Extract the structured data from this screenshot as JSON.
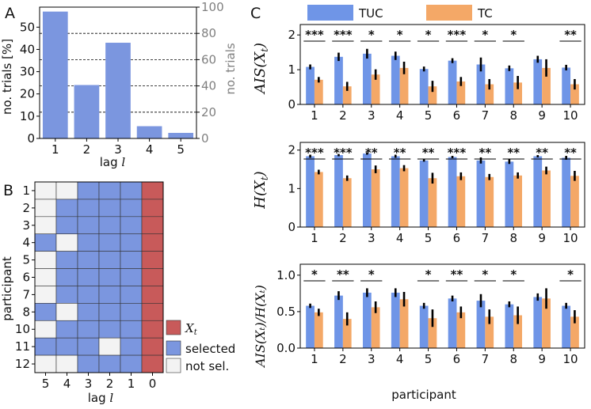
{
  "colors": {
    "bar": "#7b96df",
    "tuc": "#6f95e7",
    "tc": "#f4a867",
    "target": "#c85a5a",
    "selected": "#7b96df",
    "not_selected": "#f3f3f3",
    "right_axis": "#808080"
  },
  "chart_data": [
    {
      "panel": "A",
      "type": "bar",
      "categories": [
        "1",
        "2",
        "3",
        "4",
        "5"
      ],
      "values": [
        57,
        24,
        43,
        5.5,
        2.5
      ],
      "xlabel_main": "lag ",
      "xlabel_var": "l",
      "ylabel": "no. trials [%]",
      "ylim": [
        0,
        59
      ],
      "yticks": [
        "0",
        "10",
        "20",
        "30",
        "40",
        "50"
      ],
      "ytick_values": [
        0,
        10,
        20,
        30,
        40,
        50
      ],
      "secondary_ylabel": "no. trials",
      "secondary_ylim": [
        0,
        100
      ],
      "secondary_yticks": [
        "0",
        "20",
        "40",
        "60",
        "80",
        "100"
      ],
      "secondary_ytick_values": [
        0,
        20,
        40,
        60,
        80,
        100
      ],
      "grid": "dashed horizontal at secondary ticks"
    },
    {
      "panel": "B",
      "type": "heatmap",
      "ylabel": "participant",
      "rows": [
        "1",
        "2",
        "3",
        "4",
        "5",
        "6",
        "7",
        "8",
        "10",
        "11",
        "12"
      ],
      "columns": [
        "5",
        "4",
        "3",
        "2",
        "1",
        "0"
      ],
      "xlabel_main": "lag ",
      "xlabel_var": "l",
      "cells": [
        [
          0,
          0,
          1,
          1,
          1,
          2
        ],
        [
          0,
          1,
          1,
          1,
          1,
          2
        ],
        [
          0,
          1,
          1,
          1,
          1,
          2
        ],
        [
          1,
          0,
          1,
          1,
          1,
          2
        ],
        [
          0,
          1,
          1,
          1,
          1,
          2
        ],
        [
          0,
          1,
          1,
          1,
          1,
          2
        ],
        [
          0,
          1,
          1,
          1,
          1,
          2
        ],
        [
          1,
          0,
          1,
          1,
          1,
          2
        ],
        [
          0,
          1,
          1,
          1,
          1,
          2
        ],
        [
          1,
          1,
          1,
          0,
          1,
          2
        ],
        [
          0,
          0,
          1,
          1,
          1,
          2
        ]
      ],
      "legend": [
        "X_t",
        "selected",
        "not sel."
      ],
      "legend_target_main": "X",
      "legend_target_sub": "t"
    },
    {
      "panel": "C",
      "type": "bar",
      "categories": [
        "1",
        "2",
        "3",
        "4",
        "5",
        "6",
        "7",
        "8",
        "9",
        "10"
      ],
      "xlabel": "participant",
      "legend": [
        "TUC",
        "TC"
      ],
      "subplots": [
        {
          "ylabel": "AIS(X_t)",
          "ylabel_main": "AIS(X",
          "ylabel_sub": "t",
          "ylabel_end": ")",
          "ylim": [
            0,
            2.3
          ],
          "yticks": [
            "0",
            "1",
            "2"
          ],
          "ytick_values": [
            0,
            1,
            2
          ],
          "series": [
            {
              "name": "TUC",
              "values": [
                1.08,
                1.37,
                1.46,
                1.4,
                1.02,
                1.26,
                1.15,
                1.04,
                1.3,
                1.06
              ],
              "errors": [
                0.07,
                0.12,
                0.14,
                0.12,
                0.07,
                0.07,
                0.2,
                0.08,
                0.1,
                0.08
              ]
            },
            {
              "name": "TC",
              "values": [
                0.71,
                0.52,
                0.86,
                1.05,
                0.52,
                0.66,
                0.58,
                0.63,
                1.05,
                0.58
              ],
              "errors": [
                0.08,
                0.13,
                0.15,
                0.18,
                0.16,
                0.13,
                0.15,
                0.19,
                0.25,
                0.15
              ]
            }
          ],
          "significance": [
            "***",
            "***",
            "*",
            "*",
            "*",
            "***",
            "*",
            "*",
            "",
            "**"
          ]
        },
        {
          "ylabel": "H(X_t)",
          "ylabel_main": "H(X",
          "ylabel_sub": "t",
          "ylabel_end": ")",
          "ylim": [
            0,
            2.2
          ],
          "yticks": [
            "0",
            "1",
            "2"
          ],
          "ytick_values": [
            0,
            1,
            2
          ],
          "series": [
            {
              "name": "TUC",
              "values": [
                1.84,
                1.87,
                1.91,
                1.84,
                1.73,
                1.82,
                1.73,
                1.7,
                1.84,
                1.8
              ],
              "errors": [
                0.04,
                0.03,
                0.03,
                0.04,
                0.03,
                0.03,
                0.08,
                0.06,
                0.03,
                0.05
              ]
            },
            {
              "name": "TC",
              "values": [
                1.43,
                1.27,
                1.5,
                1.53,
                1.27,
                1.32,
                1.3,
                1.34,
                1.47,
                1.33
              ],
              "errors": [
                0.06,
                0.07,
                0.1,
                0.08,
                0.14,
                0.1,
                0.08,
                0.08,
                0.1,
                0.13
              ]
            }
          ],
          "significance": [
            "***",
            "***",
            "**",
            "**",
            "**",
            "***",
            "**",
            "**",
            "**",
            "**"
          ]
        },
        {
          "ylabel": "AIS(X_t)/H(X_t)",
          "ylabel_text": "AIS(Xₜ)/H(Xₜ)",
          "ylim": [
            0,
            1.15
          ],
          "yticks": [
            "0.0",
            "0.5",
            "1.0"
          ],
          "ytick_values": [
            0,
            0.5,
            1.0
          ],
          "series": [
            {
              "name": "TUC",
              "values": [
                0.58,
                0.72,
                0.76,
                0.76,
                0.58,
                0.68,
                0.65,
                0.6,
                0.7,
                0.58
              ],
              "errors": [
                0.03,
                0.06,
                0.06,
                0.06,
                0.04,
                0.04,
                0.09,
                0.04,
                0.05,
                0.04
              ]
            },
            {
              "name": "TC",
              "values": [
                0.49,
                0.4,
                0.56,
                0.67,
                0.41,
                0.49,
                0.43,
                0.45,
                0.68,
                0.43
              ],
              "errors": [
                0.05,
                0.09,
                0.08,
                0.1,
                0.12,
                0.08,
                0.1,
                0.12,
                0.14,
                0.09
              ]
            }
          ],
          "significance": [
            "*",
            "**",
            "*",
            "",
            "*",
            "**",
            "*",
            "*",
            "",
            "*"
          ]
        }
      ]
    }
  ],
  "panel_labels": {
    "a": "A",
    "b": "B",
    "c": "C"
  }
}
